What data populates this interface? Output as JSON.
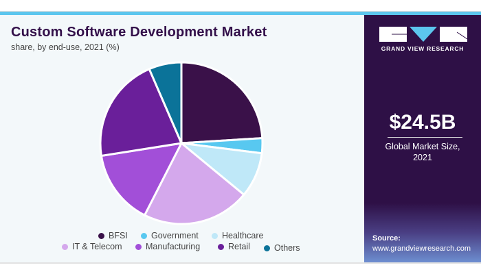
{
  "title": "Custom Software Development Market",
  "subtitle": "share, by end-use, 2021 (%)",
  "chart_data": {
    "type": "pie",
    "title": "Custom Software Development Market",
    "subtitle": "share, by end-use, 2021 (%)",
    "legend_position": "bottom",
    "start_angle": "12 o'clock, clockwise",
    "slices": [
      {
        "label": "BFSI",
        "value": 24.0,
        "color": "#3a1149"
      },
      {
        "label": "Government",
        "value": 3.0,
        "color": "#58c8f0"
      },
      {
        "label": "Healthcare",
        "value": 9.0,
        "color": "#bfe8f8"
      },
      {
        "label": "IT & Telecom",
        "value": 21.5,
        "color": "#d4a8ec"
      },
      {
        "label": "Manufacturing",
        "value": 15.0,
        "color": "#a24fd8"
      },
      {
        "label": "Retail",
        "value": 21.0,
        "color": "#6a1f9a"
      },
      {
        "label": "Others",
        "value": 6.5,
        "color": "#0b7399"
      }
    ]
  },
  "side": {
    "brand": "GRAND VIEW RESEARCH",
    "market_size": "$24.5B",
    "caption_line1": "Global Market Size,",
    "caption_line2": "2021",
    "source_label": "Source:",
    "source_url": "www.grandviewresearch.com"
  }
}
